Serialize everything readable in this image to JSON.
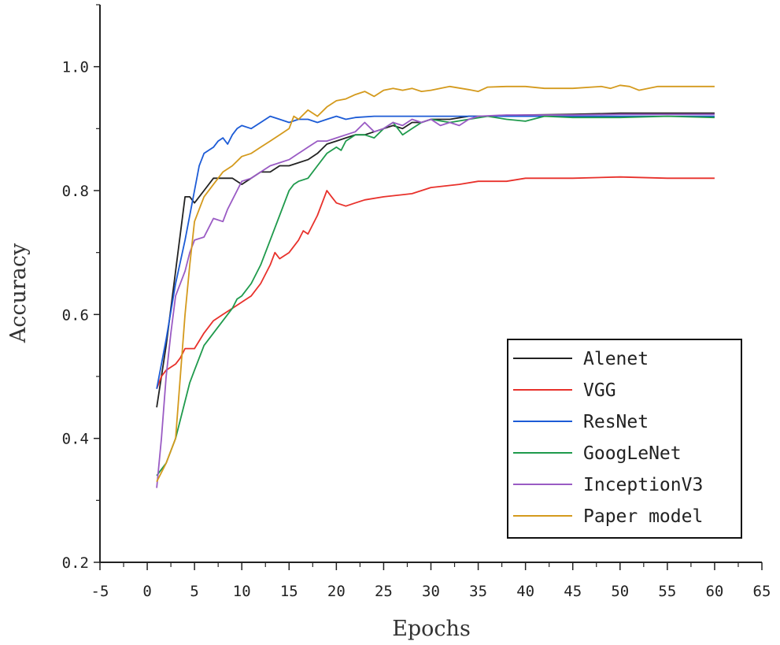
{
  "chart_data": {
    "type": "line",
    "xlabel": "Epochs",
    "ylabel": "Accuracy",
    "xlim": [
      -5,
      65
    ],
    "ylim": [
      0.2,
      1.1
    ],
    "xticks": [
      -5,
      0,
      5,
      10,
      15,
      20,
      25,
      30,
      35,
      40,
      45,
      50,
      55,
      60,
      65
    ],
    "yticks": [
      0.2,
      0.4,
      0.6,
      0.8,
      1.0
    ],
    "ytick_labels": [
      "0.2",
      "0.4",
      "0.6",
      "0.8",
      "1.0"
    ],
    "legend_position": "bottom-right",
    "series": [
      {
        "name": "Alenet",
        "color": "#222222",
        "points": [
          [
            1,
            0.45
          ],
          [
            1.5,
            0.5
          ],
          [
            2,
            0.55
          ],
          [
            3,
            0.67
          ],
          [
            4,
            0.79
          ],
          [
            4.5,
            0.79
          ],
          [
            5,
            0.78
          ],
          [
            6,
            0.8
          ],
          [
            7,
            0.82
          ],
          [
            8,
            0.82
          ],
          [
            9,
            0.82
          ],
          [
            10,
            0.81
          ],
          [
            11,
            0.82
          ],
          [
            12,
            0.83
          ],
          [
            13,
            0.83
          ],
          [
            14,
            0.84
          ],
          [
            15,
            0.84
          ],
          [
            16,
            0.845
          ],
          [
            17,
            0.85
          ],
          [
            18,
            0.86
          ],
          [
            19,
            0.875
          ],
          [
            20,
            0.88
          ],
          [
            21,
            0.885
          ],
          [
            22,
            0.89
          ],
          [
            23,
            0.89
          ],
          [
            24,
            0.895
          ],
          [
            25,
            0.9
          ],
          [
            26,
            0.905
          ],
          [
            27,
            0.9
          ],
          [
            28,
            0.91
          ],
          [
            29,
            0.91
          ],
          [
            30,
            0.915
          ],
          [
            32,
            0.915
          ],
          [
            34,
            0.92
          ],
          [
            36,
            0.92
          ],
          [
            40,
            0.922
          ],
          [
            45,
            0.923
          ],
          [
            50,
            0.925
          ],
          [
            55,
            0.925
          ],
          [
            60,
            0.925
          ]
        ]
      },
      {
        "name": "VGG",
        "color": "#e8312b",
        "points": [
          [
            1,
            0.48
          ],
          [
            1.5,
            0.5
          ],
          [
            2,
            0.51
          ],
          [
            3,
            0.52
          ],
          [
            3.5,
            0.53
          ],
          [
            4,
            0.545
          ],
          [
            5,
            0.545
          ],
          [
            6,
            0.57
          ],
          [
            7,
            0.59
          ],
          [
            8,
            0.6
          ],
          [
            9,
            0.61
          ],
          [
            10,
            0.62
          ],
          [
            11,
            0.63
          ],
          [
            12,
            0.65
          ],
          [
            13,
            0.68
          ],
          [
            13.5,
            0.7
          ],
          [
            14,
            0.69
          ],
          [
            15,
            0.7
          ],
          [
            16,
            0.72
          ],
          [
            16.5,
            0.735
          ],
          [
            17,
            0.73
          ],
          [
            18,
            0.76
          ],
          [
            19,
            0.8
          ],
          [
            19.5,
            0.79
          ],
          [
            20,
            0.78
          ],
          [
            21,
            0.775
          ],
          [
            22,
            0.78
          ],
          [
            23,
            0.785
          ],
          [
            25,
            0.79
          ],
          [
            28,
            0.795
          ],
          [
            30,
            0.805
          ],
          [
            33,
            0.81
          ],
          [
            35,
            0.815
          ],
          [
            38,
            0.815
          ],
          [
            40,
            0.82
          ],
          [
            45,
            0.82
          ],
          [
            50,
            0.822
          ],
          [
            55,
            0.82
          ],
          [
            60,
            0.82
          ]
        ]
      },
      {
        "name": "ResNet",
        "color": "#1c5bd6",
        "points": [
          [
            1,
            0.48
          ],
          [
            2,
            0.56
          ],
          [
            3,
            0.65
          ],
          [
            4,
            0.72
          ],
          [
            5,
            0.8
          ],
          [
            5.5,
            0.84
          ],
          [
            6,
            0.86
          ],
          [
            7,
            0.87
          ],
          [
            7.5,
            0.88
          ],
          [
            8,
            0.885
          ],
          [
            8.5,
            0.875
          ],
          [
            9,
            0.89
          ],
          [
            9.5,
            0.9
          ],
          [
            10,
            0.905
          ],
          [
            11,
            0.9
          ],
          [
            12,
            0.91
          ],
          [
            13,
            0.92
          ],
          [
            14,
            0.915
          ],
          [
            15,
            0.91
          ],
          [
            16,
            0.915
          ],
          [
            17,
            0.915
          ],
          [
            18,
            0.91
          ],
          [
            19,
            0.915
          ],
          [
            20,
            0.92
          ],
          [
            21,
            0.915
          ],
          [
            22,
            0.918
          ],
          [
            24,
            0.92
          ],
          [
            26,
            0.92
          ],
          [
            30,
            0.92
          ],
          [
            35,
            0.92
          ],
          [
            40,
            0.92
          ],
          [
            45,
            0.92
          ],
          [
            50,
            0.92
          ],
          [
            55,
            0.92
          ],
          [
            60,
            0.92
          ]
        ]
      },
      {
        "name": "GoogLeNet",
        "color": "#1f9a4c",
        "points": [
          [
            1,
            0.34
          ],
          [
            2,
            0.36
          ],
          [
            3,
            0.4
          ],
          [
            4,
            0.46
          ],
          [
            4.5,
            0.49
          ],
          [
            5,
            0.51
          ],
          [
            6,
            0.55
          ],
          [
            7,
            0.57
          ],
          [
            8,
            0.59
          ],
          [
            9,
            0.61
          ],
          [
            9.5,
            0.625
          ],
          [
            10,
            0.63
          ],
          [
            11,
            0.65
          ],
          [
            12,
            0.68
          ],
          [
            13,
            0.72
          ],
          [
            14,
            0.76
          ],
          [
            15,
            0.8
          ],
          [
            15.5,
            0.81
          ],
          [
            16,
            0.815
          ],
          [
            17,
            0.82
          ],
          [
            18,
            0.84
          ],
          [
            19,
            0.86
          ],
          [
            20,
            0.87
          ],
          [
            20.5,
            0.865
          ],
          [
            21,
            0.88
          ],
          [
            22,
            0.89
          ],
          [
            23,
            0.89
          ],
          [
            24,
            0.885
          ],
          [
            25,
            0.9
          ],
          [
            26,
            0.91
          ],
          [
            27,
            0.89
          ],
          [
            28,
            0.9
          ],
          [
            29,
            0.91
          ],
          [
            30,
            0.915
          ],
          [
            32,
            0.91
          ],
          [
            34,
            0.915
          ],
          [
            36,
            0.92
          ],
          [
            38,
            0.915
          ],
          [
            40,
            0.912
          ],
          [
            42,
            0.92
          ],
          [
            45,
            0.918
          ],
          [
            50,
            0.918
          ],
          [
            55,
            0.92
          ],
          [
            60,
            0.918
          ]
        ]
      },
      {
        "name": "InceptionV3",
        "color": "#9a5bc4",
        "points": [
          [
            1,
            0.32
          ],
          [
            1.5,
            0.4
          ],
          [
            2,
            0.5
          ],
          [
            2.5,
            0.57
          ],
          [
            3,
            0.63
          ],
          [
            4,
            0.67
          ],
          [
            4.5,
            0.7
          ],
          [
            5,
            0.72
          ],
          [
            6,
            0.725
          ],
          [
            6.5,
            0.74
          ],
          [
            7,
            0.755
          ],
          [
            8,
            0.75
          ],
          [
            8.5,
            0.77
          ],
          [
            9,
            0.785
          ],
          [
            9.5,
            0.8
          ],
          [
            10,
            0.815
          ],
          [
            11,
            0.82
          ],
          [
            12,
            0.83
          ],
          [
            13,
            0.84
          ],
          [
            14,
            0.845
          ],
          [
            15,
            0.85
          ],
          [
            16,
            0.86
          ],
          [
            17,
            0.87
          ],
          [
            18,
            0.88
          ],
          [
            19,
            0.88
          ],
          [
            20,
            0.885
          ],
          [
            21,
            0.89
          ],
          [
            22,
            0.895
          ],
          [
            23,
            0.91
          ],
          [
            24,
            0.895
          ],
          [
            25,
            0.9
          ],
          [
            26,
            0.91
          ],
          [
            27,
            0.905
          ],
          [
            28,
            0.915
          ],
          [
            29,
            0.91
          ],
          [
            30,
            0.915
          ],
          [
            31,
            0.905
          ],
          [
            32,
            0.91
          ],
          [
            33,
            0.905
          ],
          [
            34,
            0.915
          ],
          [
            35,
            0.92
          ],
          [
            38,
            0.922
          ],
          [
            40,
            0.922
          ],
          [
            45,
            0.922
          ],
          [
            50,
            0.923
          ],
          [
            55,
            0.923
          ],
          [
            60,
            0.923
          ]
        ]
      },
      {
        "name": "Paper model",
        "color": "#d49a1d",
        "points": [
          [
            1,
            0.33
          ],
          [
            2,
            0.36
          ],
          [
            3,
            0.4
          ],
          [
            3.5,
            0.5
          ],
          [
            4,
            0.6
          ],
          [
            4.5,
            0.68
          ],
          [
            5,
            0.75
          ],
          [
            6,
            0.79
          ],
          [
            7,
            0.81
          ],
          [
            8,
            0.83
          ],
          [
            9,
            0.84
          ],
          [
            10,
            0.855
          ],
          [
            11,
            0.86
          ],
          [
            12,
            0.87
          ],
          [
            13,
            0.88
          ],
          [
            14,
            0.89
          ],
          [
            15,
            0.9
          ],
          [
            15.5,
            0.92
          ],
          [
            16,
            0.915
          ],
          [
            17,
            0.93
          ],
          [
            18,
            0.92
          ],
          [
            19,
            0.935
          ],
          [
            20,
            0.945
          ],
          [
            21,
            0.948
          ],
          [
            22,
            0.955
          ],
          [
            23,
            0.96
          ],
          [
            24,
            0.952
          ],
          [
            25,
            0.962
          ],
          [
            26,
            0.965
          ],
          [
            27,
            0.962
          ],
          [
            28,
            0.965
          ],
          [
            29,
            0.96
          ],
          [
            30,
            0.962
          ],
          [
            32,
            0.968
          ],
          [
            34,
            0.963
          ],
          [
            35,
            0.96
          ],
          [
            36,
            0.967
          ],
          [
            38,
            0.968
          ],
          [
            40,
            0.968
          ],
          [
            42,
            0.965
          ],
          [
            45,
            0.965
          ],
          [
            48,
            0.968
          ],
          [
            49,
            0.965
          ],
          [
            50,
            0.97
          ],
          [
            51,
            0.968
          ],
          [
            52,
            0.962
          ],
          [
            54,
            0.968
          ],
          [
            56,
            0.968
          ],
          [
            60,
            0.968
          ]
        ]
      }
    ]
  }
}
